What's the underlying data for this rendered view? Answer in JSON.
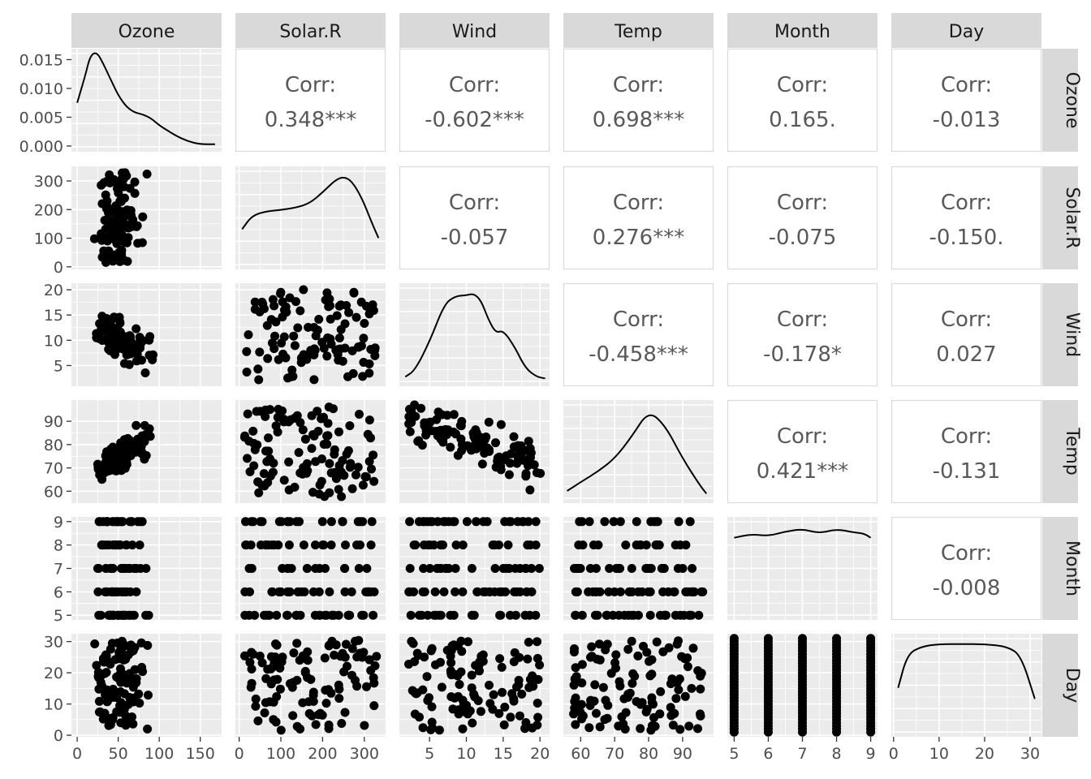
{
  "chart_data": {
    "type": "scatter",
    "variables": [
      "Ozone",
      "Solar.R",
      "Wind",
      "Temp",
      "Month",
      "Day"
    ],
    "corr_label": "Corr:",
    "correlations": {
      "0_1": "0.348***",
      "0_2": "-0.602***",
      "0_3": "0.698***",
      "0_4": "0.165.",
      "0_5": "-0.013",
      "1_2": "-0.057",
      "1_3": "0.276***",
      "1_4": "-0.075",
      "1_5": "-0.150.",
      "2_3": "-0.458***",
      "2_4": "-0.178*",
      "2_5": "0.027",
      "3_4": "0.421***",
      "3_5": "-0.131",
      "4_5": "-0.008"
    },
    "x_ticks": {
      "Ozone": [
        0,
        50,
        100,
        150
      ],
      "Solar.R": [
        0,
        100,
        200,
        300
      ],
      "Wind": [
        5,
        10,
        15,
        20
      ],
      "Temp": [
        60,
        70,
        80,
        90
      ],
      "Month": [
        5,
        6,
        7,
        8,
        9
      ],
      "Day": [
        0,
        10,
        20,
        30
      ]
    },
    "x_tick_labels": {
      "Ozone": [
        "0",
        "50",
        "100",
        "150"
      ],
      "Solar.R": [
        "0",
        "100",
        "200",
        "300"
      ],
      "Wind": [
        "5",
        "10",
        "15",
        "20"
      ],
      "Temp": [
        "60",
        "70",
        "80",
        "90"
      ],
      "Month": [
        "5",
        "6",
        "7",
        "8",
        "9"
      ],
      "Day": [
        "0",
        "10",
        "20",
        "30"
      ]
    },
    "y_ticks": {
      "Ozone": [
        0,
        0.005,
        0.01,
        0.015
      ],
      "Solar.R": [
        0,
        100,
        200,
        300
      ],
      "Wind": [
        5,
        10,
        15,
        20
      ],
      "Temp": [
        60,
        70,
        80,
        90
      ],
      "Month": [
        5,
        6,
        7,
        8,
        9
      ],
      "Day": [
        0,
        10,
        20,
        30
      ]
    },
    "y_tick_labels": {
      "Ozone": [
        "0.000",
        "0.005",
        "0.010",
        "0.015"
      ],
      "Solar.R": [
        "0",
        "100",
        "200",
        "300"
      ],
      "Wind": [
        "5",
        "10",
        "15",
        "20"
      ],
      "Temp": [
        "60",
        "70",
        "80",
        "90"
      ],
      "Month": [
        "5",
        "6",
        "7",
        "8",
        "9"
      ],
      "Day": [
        "0",
        "10",
        "20",
        "30"
      ]
    },
    "x_range": {
      "Ozone": [
        -7,
        176
      ],
      "Solar.R": [
        -9,
        351
      ],
      "Wind": [
        0.9,
        21.3
      ],
      "Temp": [
        54.9,
        99.1
      ],
      "Month": [
        4.8,
        9.2
      ],
      "Day": [
        -0.5,
        32.5
      ]
    },
    "y_range": {
      "Solar.R": [
        -9,
        351
      ],
      "Wind": [
        0.9,
        21.3
      ],
      "Temp": [
        54.9,
        99.1
      ],
      "Month": [
        4.8,
        9.2
      ],
      "Day": [
        -0.5,
        32.5
      ]
    },
    "ozone_density_ylim": [
      -0.001,
      0.0169
    ],
    "densities": {
      "Ozone": [
        [
          0,
          0.0075
        ],
        [
          10,
          0.0123
        ],
        [
          15,
          0.0152
        ],
        [
          20,
          0.0162
        ],
        [
          25,
          0.016
        ],
        [
          30,
          0.0148
        ],
        [
          40,
          0.0118
        ],
        [
          50,
          0.0088
        ],
        [
          60,
          0.0068
        ],
        [
          70,
          0.0058
        ],
        [
          80,
          0.0055
        ],
        [
          90,
          0.0048
        ],
        [
          100,
          0.0036
        ],
        [
          110,
          0.0027
        ],
        [
          120,
          0.0018
        ],
        [
          135,
          0.0008
        ],
        [
          150,
          0.0003
        ],
        [
          168,
          0.0003
        ]
      ],
      "Solar.R": [
        [
          7,
          0.4
        ],
        [
          30,
          0.55
        ],
        [
          60,
          0.6
        ],
        [
          100,
          0.62
        ],
        [
          140,
          0.65
        ],
        [
          170,
          0.7
        ],
        [
          200,
          0.82
        ],
        [
          230,
          0.96
        ],
        [
          250,
          1.0
        ],
        [
          270,
          0.95
        ],
        [
          295,
          0.75
        ],
        [
          320,
          0.45
        ],
        [
          334,
          0.3
        ]
      ],
      "Wind": [
        [
          1.7,
          0.05
        ],
        [
          3,
          0.12
        ],
        [
          5,
          0.45
        ],
        [
          7,
          0.88
        ],
        [
          8.5,
          0.97
        ],
        [
          10,
          0.98
        ],
        [
          11,
          1.0
        ],
        [
          12,
          0.92
        ],
        [
          13,
          0.7
        ],
        [
          14,
          0.55
        ],
        [
          15,
          0.58
        ],
        [
          16.5,
          0.4
        ],
        [
          18,
          0.15
        ],
        [
          19.5,
          0.05
        ],
        [
          20.7,
          0.03
        ]
      ],
      "Temp": [
        [
          56,
          0.08
        ],
        [
          60,
          0.18
        ],
        [
          65,
          0.3
        ],
        [
          70,
          0.45
        ],
        [
          75,
          0.7
        ],
        [
          80,
          1.0
        ],
        [
          85,
          0.82
        ],
        [
          90,
          0.45
        ],
        [
          95,
          0.15
        ],
        [
          97,
          0.05
        ]
      ],
      "Month": [
        [
          5,
          0.88
        ],
        [
          5.5,
          0.92
        ],
        [
          6,
          0.9
        ],
        [
          6.5,
          0.95
        ],
        [
          7,
          0.98
        ],
        [
          7.5,
          0.93
        ],
        [
          8,
          0.98
        ],
        [
          8.5,
          0.94
        ],
        [
          8.8,
          0.93
        ],
        [
          9,
          0.88
        ]
      ],
      "Day": [
        [
          1,
          0.5
        ],
        [
          3,
          0.88
        ],
        [
          6,
          0.97
        ],
        [
          10,
          1.0
        ],
        [
          15,
          1.0
        ],
        [
          20,
          1.0
        ],
        [
          25,
          0.97
        ],
        [
          28,
          0.87
        ],
        [
          31,
          0.38
        ]
      ]
    },
    "grid": true,
    "point_color": "#000000",
    "panel_color": "#ebebeb",
    "strip_color": "#d9d9d9"
  }
}
